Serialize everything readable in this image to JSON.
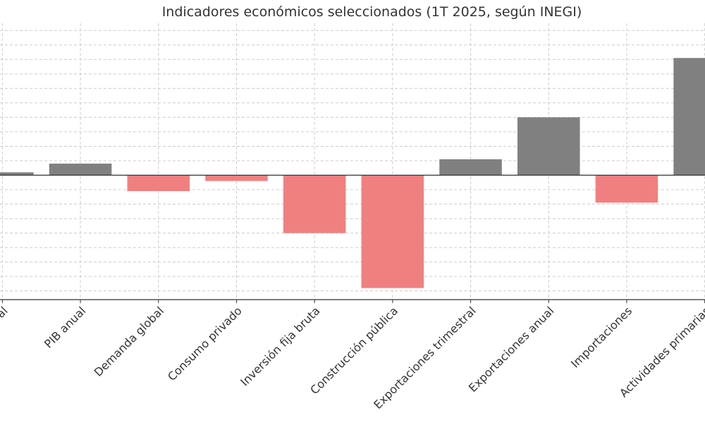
{
  "chart_data": {
    "type": "bar",
    "title": "Indicadores económicos seleccionados (1T 2025, según INEGI)",
    "xlabel": "",
    "ylabel": "",
    "categories": [
      "PIB trimestral",
      "PIB anual",
      "Demanda global",
      "Consumo privado",
      "Inversión fija bruta",
      "Construcción pública",
      "Exportaciones trimestral",
      "Exportaciones anual",
      "Importaciones",
      "Actividades primarias"
    ],
    "values": [
      0.2,
      0.8,
      -1.1,
      -0.4,
      -4.0,
      -7.8,
      1.1,
      4.0,
      -1.9,
      8.1
    ],
    "ylim": [
      -8.6,
      10.5
    ],
    "grid": true,
    "colors": {
      "positive": "#808080",
      "negative": "#f08080",
      "axis": "#333333",
      "grid": "#cccccc"
    }
  }
}
